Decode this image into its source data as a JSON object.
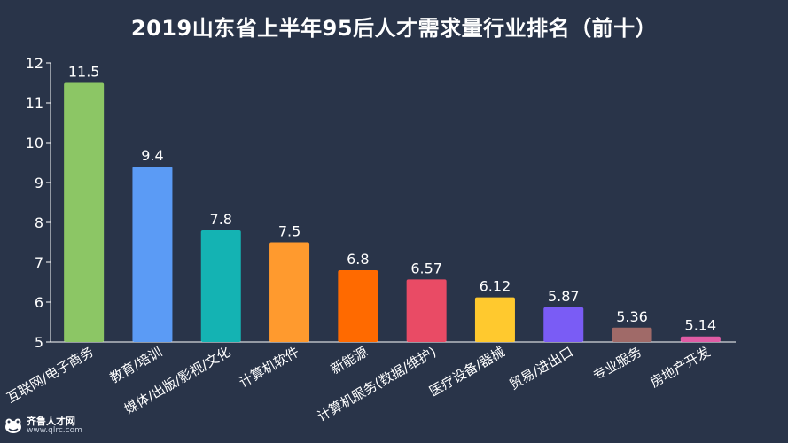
{
  "chart_data": {
    "type": "bar",
    "title": "2019山东省上半年95后人才需求量行业排名（前十）",
    "categories": [
      "互联网/电子商务",
      "教育/培训",
      "媒体/出版/影视/文化",
      "计算机软件",
      "新能源",
      "计算机服务(数据/维护)",
      "医疗设备/器械",
      "贸易/进出口",
      "专业服务",
      "房地产开发"
    ],
    "values": [
      11.5,
      9.4,
      7.8,
      7.5,
      6.8,
      6.57,
      6.12,
      5.87,
      5.36,
      5.14
    ],
    "value_labels": [
      "11.5",
      "9.4",
      "7.8",
      "7.5",
      "6.8",
      "6.57",
      "6.12",
      "5.87",
      "5.36",
      "5.14"
    ],
    "colors": [
      "#8cc665",
      "#5b9bf5",
      "#14b3b3",
      "#ff9a2e",
      "#ff6a00",
      "#e94b65",
      "#ffc92e",
      "#7a5cf5",
      "#a06a68",
      "#e05ca5"
    ],
    "ylim": [
      5,
      12
    ],
    "yticks": [
      "5",
      "6",
      "7",
      "8",
      "9",
      "10",
      "11",
      "12"
    ],
    "grid": false,
    "xlabel": "",
    "ylabel": ""
  },
  "watermark": {
    "name": "齐鲁人才网",
    "url": "www.qlrc.com"
  }
}
